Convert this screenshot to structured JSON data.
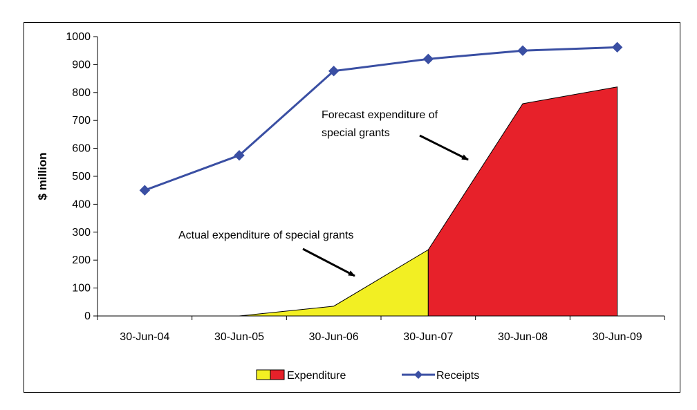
{
  "chart_data": {
    "type": "area",
    "ylabel": "$ million",
    "xlabel": "",
    "title": "",
    "ylim": [
      0,
      1000
    ],
    "y_ticks": [
      "0",
      "100",
      "200",
      "300",
      "400",
      "500",
      "600",
      "700",
      "800",
      "900",
      "1000"
    ],
    "categories": [
      "30-Jun-04",
      "30-Jun-05",
      "30-Jun-06",
      "30-Jun-07",
      "30-Jun-08",
      "30-Jun-09"
    ],
    "series": [
      {
        "name": "Receipts",
        "type": "line",
        "color": "#3a4fa3",
        "marker": "diamond",
        "values": [
          450,
          575,
          877,
          920,
          950,
          962
        ]
      },
      {
        "name": "Expenditure",
        "type": "area",
        "points": [
          {
            "x": "30-Jun-05",
            "y": 0
          },
          {
            "x": "30-Jun-06",
            "y": 35
          },
          {
            "x": "30-Jun-07",
            "y": 237
          },
          {
            "x": "30-Jun-08",
            "y": 760
          },
          {
            "x": "30-Jun-09",
            "y": 820
          }
        ],
        "segments": [
          {
            "label": "Actual",
            "from": "30-Jun-05",
            "to": "30-Jun-07",
            "color": "#f2ef23"
          },
          {
            "label": "Forecast",
            "from": "30-Jun-07",
            "to": "30-Jun-09",
            "color": "#e7212a"
          }
        ]
      }
    ],
    "annotations": [
      {
        "id": "forecast",
        "lines": [
          "Forecast expenditure of",
          "special grants"
        ]
      },
      {
        "id": "actual",
        "lines": [
          "Actual expenditure of special grants"
        ]
      }
    ],
    "legend": {
      "placement": "bottom",
      "items": [
        {
          "label": "Expenditure",
          "colors": [
            "#f2ef23",
            "#e7212a"
          ]
        },
        {
          "label": "Receipts",
          "color": "#3a4fa3"
        }
      ]
    },
    "grid": false
  }
}
